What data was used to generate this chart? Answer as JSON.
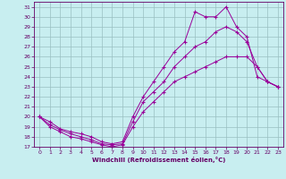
{
  "xlabel": "Windchill (Refroidissement éolien,°C)",
  "bg_color": "#c8eef0",
  "grid_color": "#9ac0c2",
  "line_color": "#990099",
  "xlim": [
    -0.5,
    23.5
  ],
  "ylim": [
    17,
    31.5
  ],
  "xticks": [
    0,
    1,
    2,
    3,
    4,
    5,
    6,
    7,
    8,
    9,
    10,
    11,
    12,
    13,
    14,
    15,
    16,
    17,
    18,
    19,
    20,
    21,
    22,
    23
  ],
  "yticks": [
    17,
    18,
    19,
    20,
    21,
    22,
    23,
    24,
    25,
    26,
    27,
    28,
    29,
    30,
    31
  ],
  "line1_x": [
    0,
    1,
    2,
    3,
    4,
    5,
    6,
    7,
    8,
    9,
    10,
    11,
    12,
    13,
    14,
    15,
    16,
    17,
    18,
    19,
    20,
    21,
    22,
    23
  ],
  "line1_y": [
    20,
    19,
    18.5,
    18,
    17.8,
    17.5,
    17.2,
    17,
    17.2,
    19,
    20.5,
    21.5,
    22.5,
    23.5,
    24,
    24.5,
    25,
    25.5,
    26,
    26,
    26,
    25,
    23.5,
    23
  ],
  "line2_x": [
    0,
    1,
    2,
    3,
    4,
    5,
    6,
    7,
    8,
    9,
    10,
    11,
    12,
    13,
    14,
    15,
    16,
    17,
    18,
    19,
    20,
    21,
    22,
    23
  ],
  "line2_y": [
    20,
    19.2,
    18.7,
    18.3,
    18.0,
    17.7,
    17.3,
    17.2,
    17.3,
    19.5,
    21.5,
    22.5,
    23.5,
    25,
    26,
    27,
    27.5,
    28.5,
    29,
    28.5,
    27.5,
    25,
    23.5,
    23
  ],
  "line3_x": [
    0,
    1,
    2,
    3,
    4,
    5,
    6,
    7,
    8,
    9,
    10,
    11,
    12,
    13,
    14,
    15,
    16,
    17,
    18,
    19,
    20,
    21,
    22,
    23
  ],
  "line3_y": [
    20,
    19.5,
    18.8,
    18.5,
    18.3,
    18.0,
    17.5,
    17.3,
    17.5,
    20,
    22,
    23.5,
    25,
    26.5,
    27.5,
    30.5,
    30,
    30,
    31,
    29,
    28,
    24,
    23.5,
    23
  ]
}
